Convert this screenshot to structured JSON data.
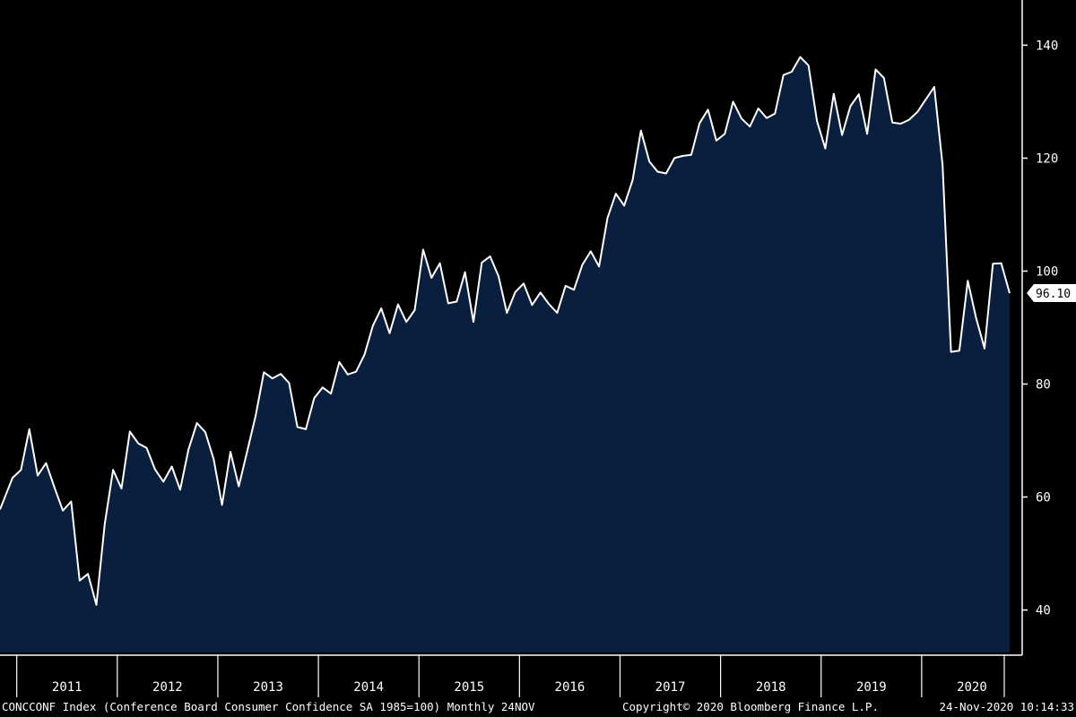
{
  "chart_data": {
    "type": "area",
    "title": "",
    "xlabel": "",
    "ylabel": "",
    "x_tick_labels": [
      "2011",
      "2012",
      "2013",
      "2014",
      "2015",
      "2016",
      "2017",
      "2018",
      "2019",
      "2020"
    ],
    "y_ticks": [
      40,
      60,
      80,
      100,
      120,
      140
    ],
    "ylim": [
      32,
      148
    ],
    "xlim": [
      "2010-11",
      "2020-12"
    ],
    "grid": false,
    "last_value_label": "96.10",
    "colors": {
      "area_fill": "#0a1f3d",
      "line": "#ffffff",
      "background": "#000000"
    },
    "series": [
      {
        "points": [
          [
            "2010-11",
            57.8
          ],
          [
            "2010-12",
            63.4
          ],
          [
            "2011-01",
            64.8
          ],
          [
            "2011-02",
            72.0
          ],
          [
            "2011-03",
            63.8
          ],
          [
            "2011-04",
            66.0
          ],
          [
            "2011-05",
            61.7
          ],
          [
            "2011-06",
            57.6
          ],
          [
            "2011-07",
            59.2
          ],
          [
            "2011-08",
            45.2
          ],
          [
            "2011-09",
            46.4
          ],
          [
            "2011-10",
            40.9
          ],
          [
            "2011-11",
            55.2
          ],
          [
            "2011-12",
            64.8
          ],
          [
            "2012-01",
            61.5
          ],
          [
            "2012-02",
            71.6
          ],
          [
            "2012-03",
            69.5
          ],
          [
            "2012-04",
            68.7
          ],
          [
            "2012-05",
            64.9
          ],
          [
            "2012-06",
            62.7
          ],
          [
            "2012-07",
            65.4
          ],
          [
            "2012-08",
            61.3
          ],
          [
            "2012-09",
            68.4
          ],
          [
            "2012-10",
            73.1
          ],
          [
            "2012-11",
            71.5
          ],
          [
            "2012-12",
            66.7
          ],
          [
            "2013-01",
            58.6
          ],
          [
            "2013-02",
            68.0
          ],
          [
            "2013-03",
            61.9
          ],
          [
            "2013-04",
            68.1
          ],
          [
            "2013-05",
            74.3
          ],
          [
            "2013-06",
            82.1
          ],
          [
            "2013-07",
            81.0
          ],
          [
            "2013-08",
            81.8
          ],
          [
            "2013-09",
            80.2
          ],
          [
            "2013-10",
            72.4
          ],
          [
            "2013-11",
            72.0
          ],
          [
            "2013-12",
            77.5
          ],
          [
            "2014-01",
            79.4
          ],
          [
            "2014-02",
            78.3
          ],
          [
            "2014-03",
            83.9
          ],
          [
            "2014-04",
            81.7
          ],
          [
            "2014-05",
            82.2
          ],
          [
            "2014-06",
            85.2
          ],
          [
            "2014-07",
            90.3
          ],
          [
            "2014-08",
            93.4
          ],
          [
            "2014-09",
            89.0
          ],
          [
            "2014-10",
            94.1
          ],
          [
            "2014-11",
            91.0
          ],
          [
            "2014-12",
            93.1
          ],
          [
            "2015-01",
            103.8
          ],
          [
            "2015-02",
            98.8
          ],
          [
            "2015-03",
            101.4
          ],
          [
            "2015-04",
            94.3
          ],
          [
            "2015-05",
            94.6
          ],
          [
            "2015-06",
            99.8
          ],
          [
            "2015-07",
            91.0
          ],
          [
            "2015-08",
            101.5
          ],
          [
            "2015-09",
            102.6
          ],
          [
            "2015-10",
            99.1
          ],
          [
            "2015-11",
            92.6
          ],
          [
            "2015-12",
            96.3
          ],
          [
            "2016-01",
            97.8
          ],
          [
            "2016-02",
            94.0
          ],
          [
            "2016-03",
            96.2
          ],
          [
            "2016-04",
            94.2
          ],
          [
            "2016-05",
            92.6
          ],
          [
            "2016-06",
            97.4
          ],
          [
            "2016-07",
            96.7
          ],
          [
            "2016-08",
            101.1
          ],
          [
            "2016-09",
            103.5
          ],
          [
            "2016-10",
            100.8
          ],
          [
            "2016-11",
            109.4
          ],
          [
            "2016-12",
            113.7
          ],
          [
            "2017-01",
            111.6
          ],
          [
            "2017-02",
            116.1
          ],
          [
            "2017-03",
            124.9
          ],
          [
            "2017-04",
            119.4
          ],
          [
            "2017-05",
            117.6
          ],
          [
            "2017-06",
            117.3
          ],
          [
            "2017-07",
            120.0
          ],
          [
            "2017-08",
            120.4
          ],
          [
            "2017-09",
            120.6
          ],
          [
            "2017-10",
            126.2
          ],
          [
            "2017-11",
            128.6
          ],
          [
            "2017-12",
            123.1
          ],
          [
            "2018-01",
            124.3
          ],
          [
            "2018-02",
            130.0
          ],
          [
            "2018-03",
            127.0
          ],
          [
            "2018-04",
            125.6
          ],
          [
            "2018-05",
            128.8
          ],
          [
            "2018-06",
            127.1
          ],
          [
            "2018-07",
            127.9
          ],
          [
            "2018-08",
            134.7
          ],
          [
            "2018-09",
            135.3
          ],
          [
            "2018-10",
            137.9
          ],
          [
            "2018-11",
            136.4
          ],
          [
            "2018-12",
            126.6
          ],
          [
            "2019-01",
            121.7
          ],
          [
            "2019-02",
            131.4
          ],
          [
            "2019-03",
            124.1
          ],
          [
            "2019-04",
            129.2
          ],
          [
            "2019-05",
            131.3
          ],
          [
            "2019-06",
            124.3
          ],
          [
            "2019-07",
            135.7
          ],
          [
            "2019-08",
            134.2
          ],
          [
            "2019-09",
            126.3
          ],
          [
            "2019-10",
            126.1
          ],
          [
            "2019-11",
            126.8
          ],
          [
            "2019-12",
            128.2
          ],
          [
            "2020-01",
            130.4
          ],
          [
            "2020-02",
            132.6
          ],
          [
            "2020-03",
            118.8
          ],
          [
            "2020-04",
            85.7
          ],
          [
            "2020-05",
            85.9
          ],
          [
            "2020-06",
            98.3
          ],
          [
            "2020-07",
            91.7
          ],
          [
            "2020-08",
            86.3
          ],
          [
            "2020-09",
            101.3
          ],
          [
            "2020-10",
            101.4
          ],
          [
            "2020-11",
            96.1
          ]
        ]
      }
    ]
  },
  "footer": {
    "left": "CONCCONF Index (Conference Board Consumer Confidence SA 1985=100)  Monthly 24NOV",
    "middle": "Copyright© 2020 Bloomberg Finance L.P.",
    "right": "24-Nov-2020 10:14:33"
  }
}
